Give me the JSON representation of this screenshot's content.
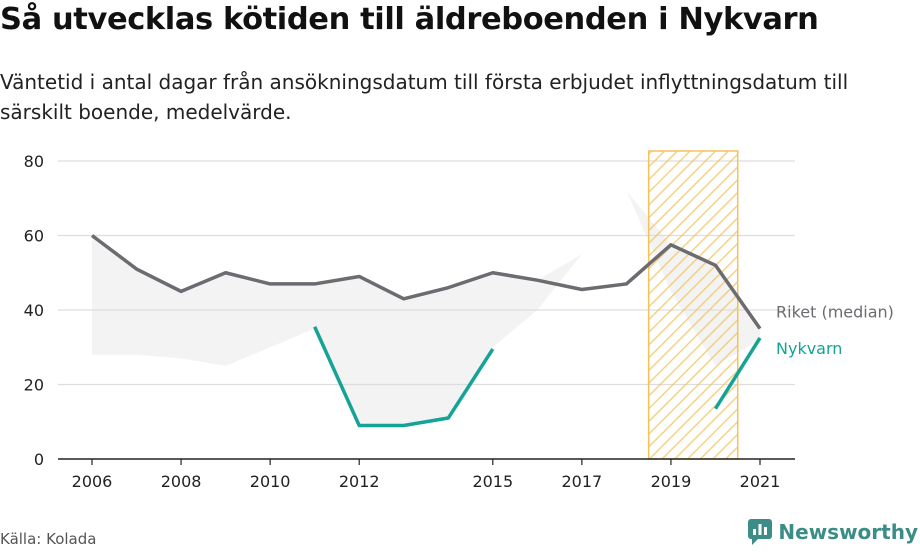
{
  "title": "Så utvecklas kötiden till äldreboenden i Nykvarn",
  "subtitle": "Väntetid i antal dagar från ansökningsdatum till första erbjudet inflyttningsdatum till särskilt boende, medelvärde.",
  "source": "Källa: Kolada",
  "brand": "Newsworthy",
  "colors": {
    "riket": "#6b6b70",
    "nykvarn": "#14a396",
    "band": "#efefef",
    "grid": "#dddddd",
    "highlight_stroke": "#f3c35a"
  },
  "chart_data": {
    "type": "line",
    "x": [
      2006,
      2007,
      2008,
      2009,
      2010,
      2011,
      2012,
      2013,
      2014,
      2015,
      2016,
      2017,
      2018,
      2019,
      2020,
      2021
    ],
    "x_ticks": [
      2006,
      2008,
      2010,
      2012,
      2015,
      2017,
      2019,
      2021
    ],
    "y_ticks": [
      0,
      20,
      40,
      60,
      80
    ],
    "xlim": [
      2006,
      2021
    ],
    "ylim": [
      0,
      80
    ],
    "grid": true,
    "series": [
      {
        "name": "Riket (median)",
        "key": "riket",
        "values": [
          60,
          51,
          45,
          50,
          47,
          47,
          49,
          43,
          46,
          50,
          48,
          45.5,
          47,
          57.5,
          52,
          35
        ]
      },
      {
        "name": "Nykvarn",
        "key": "nykvarn",
        "values": [
          null,
          null,
          null,
          null,
          null,
          35.5,
          9,
          9,
          11,
          29.5,
          null,
          null,
          null,
          null,
          13.5,
          32.5
        ]
      }
    ],
    "range_band": {
      "lower": [
        28,
        28,
        27,
        25,
        30,
        35,
        9,
        9,
        11,
        30,
        40,
        55,
        72,
        45,
        25,
        32
      ],
      "upper": [
        60,
        51,
        45,
        50,
        47,
        47,
        49,
        43,
        46,
        50,
        48,
        55,
        72,
        57.5,
        52,
        35
      ]
    },
    "highlight": {
      "from": 2018.5,
      "to": 2020.5,
      "pattern": "diagonal-hatch"
    }
  }
}
